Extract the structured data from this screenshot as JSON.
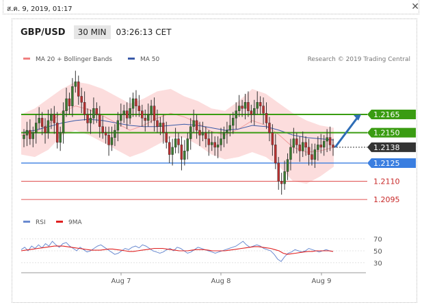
{
  "timestamp": "ส.ค. 9, 2019, 01:17",
  "header": {
    "symbol": "GBP/USD",
    "timeframe": "30 MIN",
    "time": "03:26:13 CET"
  },
  "legend": {
    "ma20": "MA 20 + Bollinger Bands",
    "ma50": "MA 50",
    "credit": "Research © 2019 Trading Central"
  },
  "rsi_legend": {
    "rsi": "RSI",
    "ma": "9MA"
  },
  "colors": {
    "resistance": "#3a9c12",
    "support_blue": "#3a7ee0",
    "support_red": "#e05050",
    "price_tag": "#333333",
    "bb_fill": "#fbd7d7",
    "ma50": "#3a5aa8",
    "arrow": "#2f6db6",
    "candle_up": "#3a7a30",
    "candle_down": "#b83030"
  },
  "chart_data": {
    "type": "candlestick",
    "title": "GBP/USD",
    "x_tick_labels": [
      "Aug 7",
      "Aug 8",
      "Aug 9"
    ],
    "ylim": [
      1.209,
      1.22
    ],
    "levels": [
      {
        "value": 1.2165,
        "label": "1.2165",
        "kind": "resistance"
      },
      {
        "value": 1.215,
        "label": "1.2150",
        "kind": "resistance"
      },
      {
        "value": 1.2138,
        "label": "1.2138",
        "kind": "current_price"
      },
      {
        "value": 1.2125,
        "label": "1.2125",
        "kind": "support"
      },
      {
        "value": 1.211,
        "label": "1.2110",
        "kind": "support"
      },
      {
        "value": 1.2095,
        "label": "1.2095",
        "kind": "support"
      }
    ],
    "close": [
      1.2148,
      1.2152,
      1.2145,
      1.215,
      1.2158,
      1.2162,
      1.2155,
      1.215,
      1.216,
      1.2165,
      1.2158,
      1.2142,
      1.215,
      1.2168,
      1.2178,
      1.2172,
      1.2188,
      1.2192,
      1.218,
      1.2175,
      1.2165,
      1.2158,
      1.2162,
      1.217,
      1.2165,
      1.2155,
      1.215,
      1.2148,
      1.214,
      1.2146,
      1.2152,
      1.216,
      1.2165,
      1.2168,
      1.2162,
      1.217,
      1.2178,
      1.2172,
      1.2168,
      1.2162,
      1.216,
      1.2165,
      1.2172,
      1.216,
      1.2155,
      1.2158,
      1.215,
      1.2142,
      1.2132,
      1.2138,
      1.2145,
      1.214,
      1.2128,
      1.2135,
      1.2145,
      1.2155,
      1.216,
      1.2152,
      1.2148,
      1.215,
      1.2145,
      1.214,
      1.2142,
      1.2138,
      1.214,
      1.2145,
      1.215,
      1.2152,
      1.2156,
      1.2162,
      1.2168,
      1.2172,
      1.217,
      1.2175,
      1.2168,
      1.2165,
      1.217,
      1.2175,
      1.2172,
      1.2166,
      1.2158,
      1.215,
      1.214,
      1.2125,
      1.211,
      1.2108,
      1.2118,
      1.2128,
      1.2138,
      1.2145,
      1.214,
      1.2135,
      1.2142,
      1.2138,
      1.2132,
      1.2128,
      1.2136,
      1.214,
      1.2138,
      1.2143,
      1.2146,
      1.214,
      1.2138
    ],
    "ma20_band_upper": [
      1.2165,
      1.217,
      1.2178,
      1.2186,
      1.2192,
      1.219,
      1.2186,
      1.218,
      1.2174,
      1.2178,
      1.2184,
      1.2186,
      1.218,
      1.2176,
      1.217,
      1.2168,
      1.2176,
      1.2186,
      1.2182,
      1.2174,
      1.2166,
      1.216,
      1.2156,
      1.2154
    ],
    "ma20_band_lower": [
      1.2132,
      1.213,
      1.2136,
      1.2148,
      1.2152,
      1.2148,
      1.2142,
      1.2136,
      1.213,
      1.2134,
      1.214,
      1.2146,
      1.2146,
      1.214,
      1.2132,
      1.2128,
      1.213,
      1.2134,
      1.213,
      1.2122,
      1.211,
      1.2108,
      1.2114,
      1.2122
    ],
    "ma20": [
      1.2148,
      1.215,
      1.2157,
      1.2167,
      1.2172,
      1.2169,
      1.2164,
      1.2158,
      1.2152,
      1.2156,
      1.2162,
      1.2166,
      1.2163,
      1.2158,
      1.2151,
      1.2148,
      1.2153,
      1.216,
      1.2156,
      1.2148,
      1.2138,
      1.2134,
      1.2135,
      1.2138
    ],
    "ma50": [
      1.215,
      1.2152,
      1.2155,
      1.2158,
      1.216,
      1.2161,
      1.216,
      1.2158,
      1.2156,
      1.2155,
      1.2155,
      1.2156,
      1.2157,
      1.2156,
      1.2154,
      1.2152,
      1.2153,
      1.2156,
      1.2155,
      1.2152,
      1.2148,
      1.2146,
      1.2145,
      1.2144
    ],
    "forecast_arrow": {
      "from": 1.2138,
      "to": 1.2165
    },
    "rsi": {
      "ticks": [
        70,
        50,
        30
      ],
      "ylim": [
        20,
        80
      ],
      "rsi_values": [
        52,
        56,
        50,
        58,
        54,
        60,
        55,
        62,
        58,
        66,
        60,
        56,
        62,
        64,
        58,
        54,
        50,
        56,
        52,
        48,
        50,
        54,
        58,
        60,
        56,
        52,
        48,
        44,
        46,
        50,
        54,
        52,
        56,
        58,
        55,
        60,
        58,
        54,
        50,
        48,
        46,
        48,
        52,
        54,
        50,
        56,
        54,
        50,
        46,
        48,
        52,
        56,
        54,
        52,
        50,
        48,
        46,
        48,
        50,
        52,
        54,
        56,
        58,
        62,
        66,
        60,
        56,
        58,
        60,
        58,
        54,
        52,
        50,
        44,
        36,
        32,
        40,
        46,
        48,
        52,
        50,
        48,
        50,
        54,
        52,
        50,
        48,
        50,
        52,
        50,
        49
      ],
      "ma_values": [
        50,
        51,
        52,
        53,
        54,
        55,
        56,
        57,
        58,
        58,
        58,
        57,
        56,
        55,
        54,
        53,
        52,
        51,
        51,
        51,
        52,
        53,
        53,
        52,
        51,
        50,
        49,
        49,
        50,
        51,
        52,
        53,
        54,
        54,
        54,
        53,
        52,
        51,
        50,
        50,
        50,
        51,
        52,
        52,
        52,
        51,
        50,
        50,
        50,
        50,
        51,
        52,
        53,
        54,
        55,
        56,
        57,
        57,
        56,
        55,
        54,
        52,
        50,
        46,
        44,
        45,
        46,
        47,
        48,
        49,
        49,
        50,
        50,
        50,
        50,
        49
      ]
    }
  }
}
